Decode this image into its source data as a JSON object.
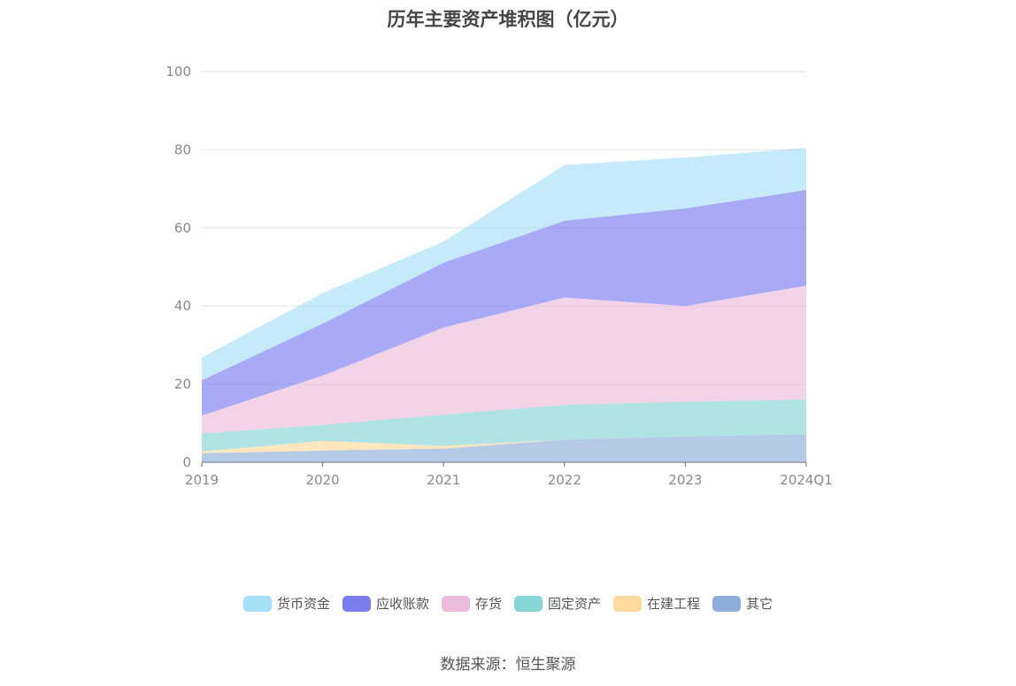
{
  "chart_data": {
    "type": "area",
    "stacked": true,
    "title": "历年主要资产堆积图（亿元）",
    "xlabel": "",
    "ylabel": "",
    "categories": [
      "2019",
      "2020",
      "2021",
      "2022",
      "2023",
      "2024Q1"
    ],
    "ylim": [
      0,
      100
    ],
    "yticks": [
      "0",
      "20",
      "40",
      "60",
      "80",
      "100"
    ],
    "grid": true,
    "legend_position": "bottom",
    "series": [
      {
        "name": "其它",
        "color": "#8eadda",
        "values": [
          2.3,
          3.0,
          3.5,
          5.8,
          6.6,
          7.2
        ]
      },
      {
        "name": "在建工程",
        "color": "#fdd99b",
        "values": [
          0.5,
          2.5,
          0.7,
          0.0,
          0.0,
          0.0
        ]
      },
      {
        "name": "固定资产",
        "color": "#86d6d6",
        "values": [
          4.6,
          4.1,
          8.0,
          8.9,
          8.9,
          8.9
        ]
      },
      {
        "name": "存货",
        "color": "#ebbbdc",
        "values": [
          4.6,
          12.6,
          22.3,
          27.5,
          24.5,
          29.1
        ]
      },
      {
        "name": "应收账款",
        "color": "#7b7cf0",
        "values": [
          9.0,
          13.3,
          16.6,
          19.6,
          25.0,
          24.5
        ]
      },
      {
        "name": "货币资金",
        "color": "#a6dff8",
        "values": [
          5.8,
          7.8,
          5.4,
          14.3,
          13.0,
          10.8
        ]
      }
    ],
    "legend_order": [
      "货币资金",
      "应收账款",
      "存货",
      "固定资产",
      "在建工程",
      "其它"
    ]
  },
  "footer": {
    "source": "数据来源：恒生聚源"
  }
}
